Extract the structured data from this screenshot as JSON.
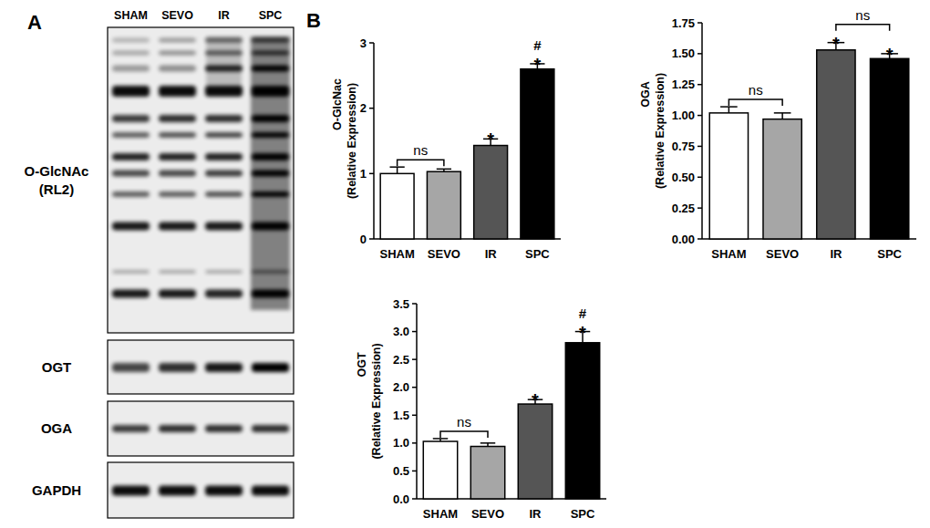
{
  "blot": {
    "panel_label": "A",
    "lanes": [
      "SHAM",
      "SEVO",
      "IR",
      "SPC"
    ],
    "rows": [
      {
        "label": [
          "O-GlcNAc",
          "(RL2)"
        ]
      },
      {
        "label": [
          "OGT"
        ]
      },
      {
        "label": [
          "OGA"
        ]
      },
      {
        "label": [
          "GAPDH"
        ]
      }
    ]
  },
  "chart_panel": {
    "label": "B"
  },
  "chart_data": [
    {
      "type": "bar",
      "y_title": "O-GlcNac",
      "y_subtitle": "(Relative Expression)",
      "categories": [
        "SHAM",
        "SEVO",
        "IR",
        "SPC"
      ],
      "values": [
        1.0,
        1.03,
        1.43,
        2.6
      ],
      "errors": [
        0.1,
        0.04,
        0.1,
        0.08
      ],
      "colors": [
        "#ffffff",
        "#a6a6a6",
        "#555555",
        "#000000"
      ],
      "ylim": [
        0,
        3
      ],
      "yticks": [
        0,
        1,
        2,
        3
      ],
      "annotations": [
        {
          "text": "ns",
          "between": [
            "SHAM",
            "SEVO"
          ]
        },
        {
          "text": "*",
          "category": "IR"
        },
        {
          "text": "*",
          "category": "SPC"
        },
        {
          "text": "#",
          "category": "SPC"
        }
      ]
    },
    {
      "type": "bar",
      "y_title": "OGA",
      "y_subtitle": "(Relative Expression)",
      "categories": [
        "SHAM",
        "SEVO",
        "IR",
        "SPC"
      ],
      "values": [
        1.02,
        0.97,
        1.53,
        1.46
      ],
      "errors": [
        0.05,
        0.05,
        0.06,
        0.04
      ],
      "colors": [
        "#ffffff",
        "#a6a6a6",
        "#555555",
        "#000000"
      ],
      "ylim": [
        0,
        1.75
      ],
      "yticks": [
        {
          "value": 0,
          "label": "0.00"
        },
        0.25,
        {
          "value": 0.5,
          "label": "0.50"
        },
        0.75,
        {
          "value": 1,
          "label": "1.00"
        },
        1.25,
        {
          "value": 1.5,
          "label": "1.50"
        },
        1.75
      ],
      "annotations": [
        {
          "text": "ns",
          "between": [
            "SHAM",
            "SEVO"
          ]
        },
        {
          "text": "*",
          "category": "IR"
        },
        {
          "text": "*",
          "category": "SPC"
        },
        {
          "text": "ns",
          "between": [
            "IR",
            "SPC"
          ]
        }
      ]
    },
    {
      "type": "bar",
      "y_title": "OGT",
      "y_subtitle": "(Relative Expression)",
      "categories": [
        "SHAM",
        "SEVO",
        "IR",
        "SPC"
      ],
      "values": [
        1.03,
        0.94,
        1.7,
        2.8
      ],
      "errors": [
        0.05,
        0.06,
        0.08,
        0.2
      ],
      "colors": [
        "#ffffff",
        "#a6a6a6",
        "#555555",
        "#000000"
      ],
      "ylim": [
        0,
        3.5
      ],
      "yticks": [
        {
          "value": 0,
          "label": "0.0"
        },
        0.5,
        {
          "value": 1,
          "label": "1.0"
        },
        1.5,
        {
          "value": 2,
          "label": "2.0"
        },
        2.5,
        {
          "value": 3,
          "label": "3.0"
        },
        3.5
      ],
      "annotations": [
        {
          "text": "ns",
          "between": [
            "SHAM",
            "SEVO"
          ]
        },
        {
          "text": "*",
          "category": "IR"
        },
        {
          "text": "*",
          "category": "SPC"
        },
        {
          "text": "#",
          "category": "SPC"
        }
      ]
    }
  ]
}
